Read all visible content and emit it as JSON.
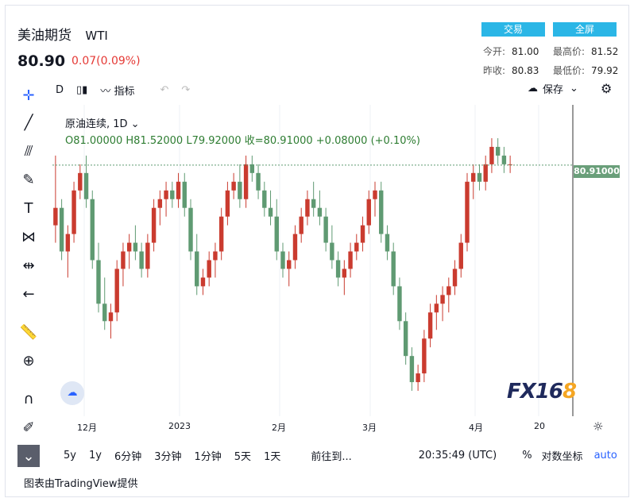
{
  "header": {
    "title": "美油期货",
    "symbol": "WTI",
    "price": "80.90",
    "change": "0.07(0.09%)",
    "btn_trade": "交易",
    "btn_full": "全屏",
    "open_label": "今开:",
    "open": "81.00",
    "high_label": "最高价:",
    "high": "81.52",
    "prev_label": "昨收:",
    "prev": "80.83",
    "low_label": "最低价:",
    "low": "79.92"
  },
  "toolbar": {
    "interval": "D",
    "indicators": "指标",
    "save": "保存"
  },
  "legend": {
    "name": "原油连续, 1D",
    "ohlc": "O81.00000  H81.52000  L79.92000  收=80.91000  +0.08000 (+0.10%)"
  },
  "price_tag": "80.91000",
  "x_axis": [
    "12月",
    "2023",
    "2月",
    "3月",
    "4月",
    "20"
  ],
  "bottom": {
    "ranges": [
      "5y",
      "1y",
      "6分钟",
      "3分钟",
      "1分钟",
      "5天",
      "1天"
    ],
    "goto": "前往到...",
    "time": "20:35:49 (UTC)",
    "pct": "%",
    "log": "对数坐标",
    "auto": "auto"
  },
  "footer": "图表由TradingView提供",
  "logo": {
    "text": "FX16",
    "accent": "8"
  },
  "colors": {
    "up": "#ca3b2f",
    "down": "#5f9a72",
    "accent": "#2bb6e6"
  },
  "chart_data": {
    "type": "candlestick",
    "last": 80.91,
    "candles": [
      [
        74,
        82,
        72,
        76
      ],
      [
        76,
        77,
        70,
        71
      ],
      [
        71,
        74,
        68,
        73
      ],
      [
        73,
        79,
        72,
        78
      ],
      [
        78,
        81,
        77,
        80
      ],
      [
        80,
        82,
        76,
        77
      ],
      [
        77,
        78,
        69,
        70
      ],
      [
        70,
        72,
        64,
        65
      ],
      [
        65,
        68,
        62,
        63
      ],
      [
        63,
        65,
        61,
        64
      ],
      [
        64,
        70,
        63,
        69
      ],
      [
        69,
        72,
        67,
        71
      ],
      [
        71,
        73,
        69,
        72
      ],
      [
        72,
        74,
        70,
        71
      ],
      [
        71,
        72,
        68,
        69
      ],
      [
        69,
        73,
        68,
        72
      ],
      [
        72,
        77,
        71,
        76
      ],
      [
        76,
        78,
        74,
        77
      ],
      [
        77,
        79,
        75,
        78
      ],
      [
        78,
        79,
        76,
        77
      ],
      [
        77,
        80,
        76,
        79
      ],
      [
        79,
        80,
        75,
        76
      ],
      [
        76,
        77,
        70,
        71
      ],
      [
        71,
        73,
        66,
        67
      ],
      [
        67,
        69,
        66,
        68
      ],
      [
        68,
        71,
        67,
        70
      ],
      [
        70,
        72,
        68,
        71
      ],
      [
        71,
        76,
        70,
        75
      ],
      [
        75,
        79,
        74,
        78
      ],
      [
        78,
        80,
        77,
        79
      ],
      [
        79,
        81,
        76,
        77
      ],
      [
        77,
        82,
        76,
        81
      ],
      [
        81,
        82,
        79,
        80
      ],
      [
        80,
        81,
        77,
        78
      ],
      [
        78,
        79,
        75,
        76
      ],
      [
        76,
        78,
        74,
        75
      ],
      [
        75,
        77,
        70,
        71
      ],
      [
        71,
        72,
        68,
        69
      ],
      [
        69,
        71,
        67,
        70
      ],
      [
        70,
        74,
        69,
        73
      ],
      [
        73,
        76,
        72,
        75
      ],
      [
        75,
        78,
        74,
        77
      ],
      [
        77,
        79,
        75,
        76
      ],
      [
        76,
        78,
        74,
        75
      ],
      [
        75,
        76,
        71,
        72
      ],
      [
        72,
        74,
        69,
        70
      ],
      [
        70,
        71,
        67,
        68
      ],
      [
        68,
        70,
        66,
        69
      ],
      [
        69,
        72,
        68,
        71
      ],
      [
        71,
        73,
        70,
        72
      ],
      [
        72,
        75,
        71,
        74
      ],
      [
        74,
        78,
        73,
        77
      ],
      [
        77,
        79,
        75,
        78
      ],
      [
        78,
        79,
        72,
        73
      ],
      [
        73,
        74,
        70,
        71
      ],
      [
        71,
        72,
        66,
        67
      ],
      [
        67,
        68,
        62,
        63
      ],
      [
        63,
        64,
        58,
        59
      ],
      [
        59,
        60,
        55,
        56
      ],
      [
        56,
        58,
        55,
        57
      ],
      [
        57,
        62,
        56,
        61
      ],
      [
        61,
        65,
        60,
        64
      ],
      [
        64,
        66,
        62,
        65
      ],
      [
        65,
        67,
        63,
        66
      ],
      [
        66,
        68,
        64,
        67
      ],
      [
        67,
        70,
        66,
        69
      ],
      [
        69,
        73,
        68,
        72
      ],
      [
        72,
        80,
        71,
        79
      ],
      [
        79,
        81,
        77,
        80
      ],
      [
        80,
        81,
        78,
        79
      ],
      [
        79,
        82,
        78,
        81
      ],
      [
        81,
        84,
        80,
        83
      ],
      [
        83,
        84,
        81,
        82
      ],
      [
        82,
        83,
        80,
        81
      ],
      [
        81,
        82,
        80,
        81
      ]
    ]
  }
}
